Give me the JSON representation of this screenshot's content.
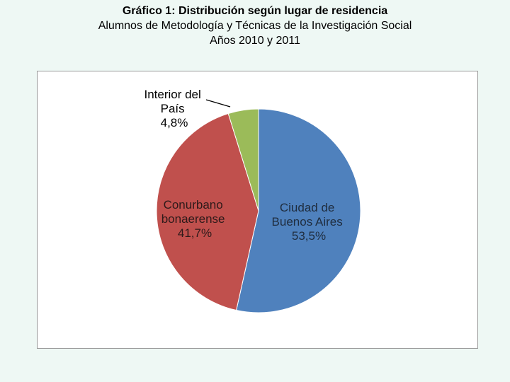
{
  "header": {
    "title": "Gráfico 1: Distribución según lugar de residencia",
    "subtitle": "Alumnos de Metodología y Técnicas de la Investigación Social",
    "years": "Años 2010 y 2011"
  },
  "chart_data": {
    "type": "pie",
    "title": "Gráfico 1: Distribución según lugar de residencia",
    "subtitle": "Alumnos de Metodología y Técnicas de la Investigación Social - Años 2010 y 2011",
    "slices": [
      {
        "name": "Ciudad de Buenos Aires",
        "label_lines": [
          "Ciudad de",
          "Buenos Aires",
          "53,5%"
        ],
        "value": 53.5,
        "color": "#4f81bd"
      },
      {
        "name": "Conurbano bonaerense",
        "label_lines": [
          "Conurbano",
          "bonaerense",
          "41,7%"
        ],
        "value": 41.7,
        "color": "#c0504d"
      },
      {
        "name": "Interior del País",
        "label_lines": [
          "Interior del",
          "País",
          "4,8%"
        ],
        "value": 4.8,
        "color": "#9bbb59"
      }
    ],
    "start_angle_deg": 0,
    "direction": "clockwise",
    "legend": "none"
  }
}
